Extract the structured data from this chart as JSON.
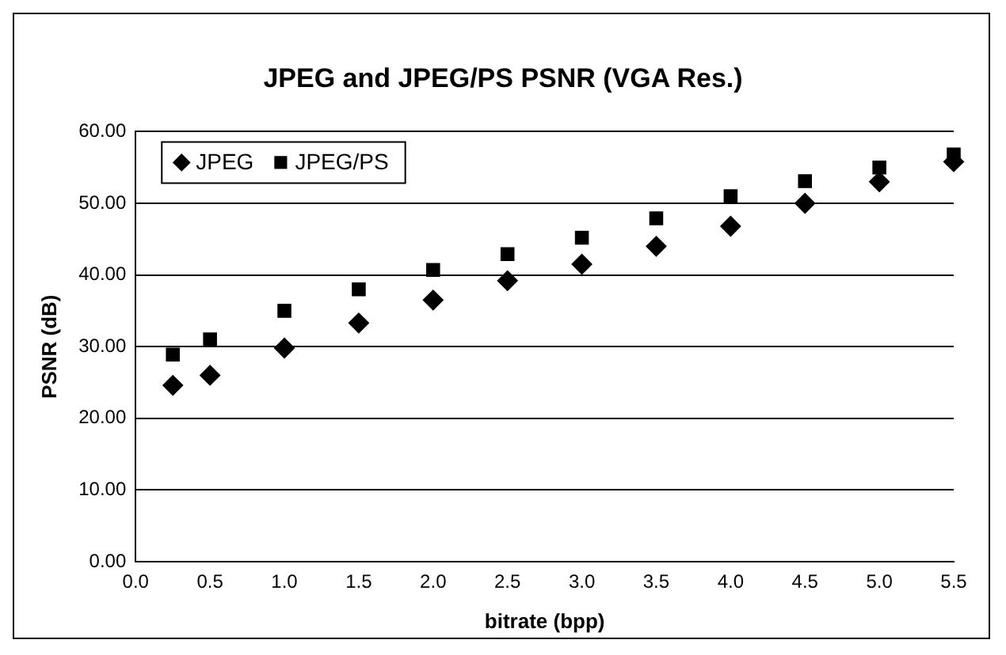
{
  "chart_data": {
    "type": "scatter",
    "title": "JPEG and JPEG/PS PSNR (VGA Res.)",
    "xlabel": "bitrate (bpp)",
    "ylabel": "PSNR (dB)",
    "x": [
      0.25,
      0.5,
      1,
      1.5,
      2,
      2.5,
      3,
      3.5,
      4,
      4.5,
      5,
      5.5
    ],
    "series": [
      {
        "name": "JPEG",
        "color": "#000000",
        "marker": "diamond",
        "values": [
          24.6,
          26.0,
          29.8,
          33.3,
          36.5,
          39.2,
          41.5,
          44.0,
          46.8,
          50.0,
          53.0,
          55.8
        ]
      },
      {
        "name": "JPEG/PS",
        "color": "#000000",
        "marker": "square",
        "values": [
          28.9,
          31.0,
          35.0,
          38.0,
          40.7,
          42.9,
          45.2,
          47.9,
          51.0,
          53.1,
          55.0,
          56.8
        ]
      }
    ],
    "xlim": [
      0,
      5.5
    ],
    "xticks": [
      {
        "value": 0,
        "label": "0.0"
      },
      {
        "value": 0.5,
        "label": "0.5"
      },
      {
        "value": 1,
        "label": "1.0"
      },
      {
        "value": 1.5,
        "label": "1.5"
      },
      {
        "value": 2,
        "label": "2.0"
      },
      {
        "value": 2.5,
        "label": "2.5"
      },
      {
        "value": 3,
        "label": "3.0"
      },
      {
        "value": 3.5,
        "label": "3.5"
      },
      {
        "value": 4,
        "label": "4.0"
      },
      {
        "value": 4.5,
        "label": "4.5"
      },
      {
        "value": 5,
        "label": "5.0"
      },
      {
        "value": 5.5,
        "label": "5.5"
      }
    ],
    "ylim": [
      0,
      60
    ],
    "yticks": [
      {
        "value": 0,
        "label": "0.00"
      },
      {
        "value": 10,
        "label": "10.00"
      },
      {
        "value": 20,
        "label": "20.00"
      },
      {
        "value": 30,
        "label": "30.00"
      },
      {
        "value": 40,
        "label": "40.00"
      },
      {
        "value": 50,
        "label": "50.00"
      },
      {
        "value": 60,
        "label": "60.00"
      }
    ],
    "grid": "y",
    "legend": "top left"
  }
}
